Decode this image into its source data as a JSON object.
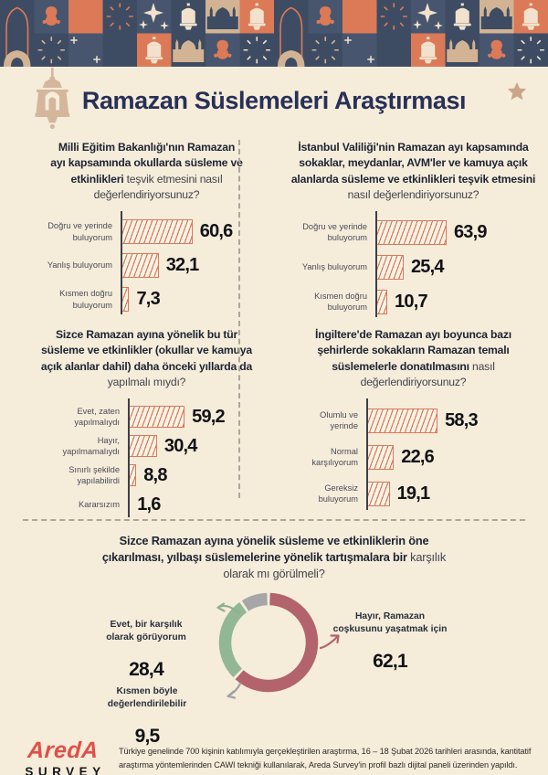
{
  "header": {
    "title": "Ramazan Süslemeleri Araştırması"
  },
  "chart_data": [
    {
      "type": "bar",
      "orientation": "horizontal",
      "xlim": [
        0,
        100
      ],
      "grid": false,
      "question_bold": "Milli Eğitim Bakanlığı'nın Ramazan ayı kapsamında okullarda süsleme ve etkinlikleri",
      "question_regular": "teşvik etmesini nasıl değerlendiriyorsunuz?",
      "categories": [
        "Doğru ve yerinde\nbuluyorum",
        "Yanlış buluyorum",
        "Kısmen doğru\nbuluyorum"
      ],
      "values": [
        60.6,
        32.1,
        7.3
      ],
      "value_labels": [
        "60,6",
        "32,1",
        "7,3"
      ]
    },
    {
      "type": "bar",
      "orientation": "horizontal",
      "xlim": [
        0,
        100
      ],
      "grid": false,
      "question_bold": "İstanbul Valiliği'nin Ramazan ayı kapsamında sokaklar, meydanlar, AVM'ler ve kamuya açık alanlarda süsleme ve etkinlikleri teşvik etmesini",
      "question_regular": "nasıl değerlendiriyorsunuz?",
      "categories": [
        "Doğru ve yerinde\nbuluyorum",
        "Yanlış buluyorum",
        "Kısmen doğru\nbuluyorum"
      ],
      "values": [
        63.9,
        25.4,
        10.7
      ],
      "value_labels": [
        "63,9",
        "25,4",
        "10,7"
      ]
    },
    {
      "type": "bar",
      "orientation": "horizontal",
      "xlim": [
        0,
        100
      ],
      "grid": false,
      "question_bold": "Sizce Ramazan ayına yönelik bu tür süsleme ve etkinlikler (okullar ve kamuya açık alanlar dahil) daha önceki yıllarda da",
      "question_regular": "yapılmalı mıydı?",
      "categories": [
        "Evet, zaten\nyapılmalıydı",
        "Hayır,\nyapılmamalıydı",
        "Sınırlı şekilde\nyapılabilirdi",
        "Kararsızım"
      ],
      "values": [
        59.2,
        30.4,
        8.8,
        1.6
      ],
      "value_labels": [
        "59,2",
        "30,4",
        "8,8",
        "1,6"
      ]
    },
    {
      "type": "bar",
      "orientation": "horizontal",
      "xlim": [
        0,
        100
      ],
      "grid": false,
      "question_bold": "İngiltere'de Ramazan ayı boyunca bazı şehirlerde sokakların Ramazan temalı süslemelerle donatılmasını",
      "question_regular": "nasıl değerlendiriyorsunuz?",
      "categories": [
        "Olumlu ve\nyerinde",
        "Normal\nkarşılıyorum",
        "Gereksiz\nbuluyorum"
      ],
      "values": [
        58.3,
        22.6,
        19.1
      ],
      "value_labels": [
        "58,3",
        "22,6",
        "19,1"
      ]
    },
    {
      "type": "pie",
      "subtype": "donut",
      "legend_position": "sides",
      "question_bold": "Sizce Ramazan ayına yönelik süsleme ve etkinliklerin öne çıkarılması, yılbaşı süslemelerine yönelik tartışmalara bir",
      "question_regular": "karşılık olarak mı görülmeli?",
      "segments": [
        {
          "label": "Hayır, Ramazan\ncoşkusunu yaşatmak için",
          "value": 62.1,
          "display": "62,1",
          "color": "#B2636B"
        },
        {
          "label": "Evet, bir karşılık\nolarak görüyorum",
          "value": 28.4,
          "display": "28,4",
          "color": "#92B795"
        },
        {
          "label": "Kısmen böyle\ndeğerlendirilebilir",
          "value": 9.5,
          "display": "9,5",
          "color": "#A6A6A9"
        }
      ]
    }
  ],
  "footer": {
    "logo_line1": "AredA",
    "logo_line2": "SURVEY",
    "note": "Türkiye genelinde 700 kişinin katılımıyla gerçekleştirilen araştırma, 16 – 18 Şubat 2026 tarihleri arasında, kantitatif araştırma yöntemlerinden CAWI tekniği kullanılarak, Areda Survey'in profil bazlı dijital paneli üzerinden yapıldı."
  },
  "colors": {
    "background": "#F5ECDA",
    "title_navy": "#283057",
    "bar_accent": "#D8795C",
    "axis": "#3E3E4A",
    "divider": "#ABA698",
    "logo_red": "#DF5048",
    "donut_red": "#B2636B",
    "donut_green": "#92B795",
    "donut_gray": "#A6A6A9",
    "banner_navy": "#47566E",
    "banner_slate": "#3E4C63",
    "banner_orange": "#DC7A57",
    "banner_beige": "#D2B394",
    "banner_cream": "#F2E2CD"
  }
}
